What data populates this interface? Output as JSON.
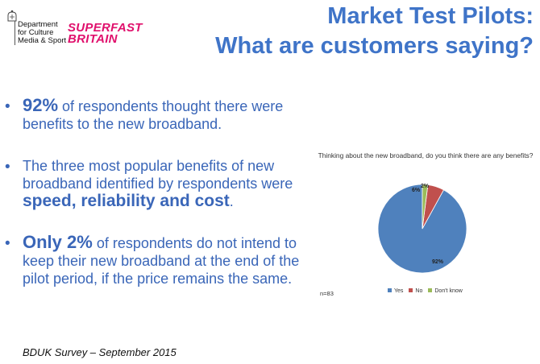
{
  "header": {
    "dept_lines": [
      "Department",
      "for Culture",
      "Media & Sport"
    ],
    "brand_lines": [
      "SUPERFAST",
      "BRITAIN"
    ],
    "title_lines": [
      "Market Test Pilots:",
      "What are customers saying?"
    ]
  },
  "bullets": [
    {
      "bold": "92%",
      "text": " of respondents thought there were benefits to the new broadband."
    },
    {
      "text": "The three most popular benefits of new broadband identified by respondents were ",
      "bold": "speed, reliability and cost",
      "suffix": "."
    },
    {
      "bold": "Only 2%",
      "text": " of respondents do not intend to keep their new broadband at the end of the pilot period, if the price remains the same."
    }
  ],
  "footer": "BDUK Survey – September 2015",
  "chart_data": {
    "type": "pie",
    "title": "Thinking about the new broadband, do you think there are any benefits?",
    "categories": [
      "Yes",
      "No",
      "Don't know"
    ],
    "values": [
      92,
      6,
      2
    ],
    "data_labels": [
      "92%",
      "6%",
      "2%"
    ],
    "colors": [
      "#4f81bd",
      "#c0504d",
      "#9bbb59"
    ],
    "note": "n=83",
    "legend_position": "bottom"
  }
}
